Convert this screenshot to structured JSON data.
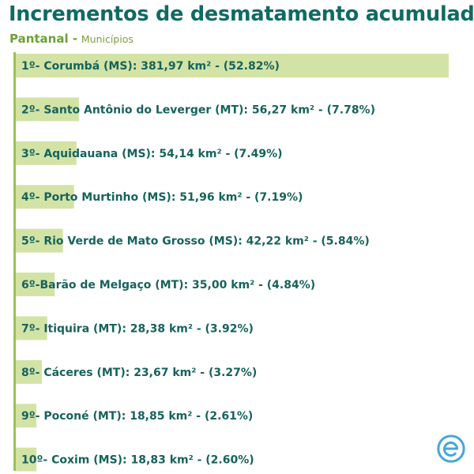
{
  "header": {
    "title": "Incrementos de desmatamento acumulado",
    "region": "Pantanal -",
    "kind": "Municípios"
  },
  "colors": {
    "title": "#0e6b63",
    "bar": "#d3e3a6",
    "axis": "#9ec24b",
    "label": "#16635c",
    "logo": "#4aa6d6"
  },
  "logo": {
    "icon": "circular-e-logo-icon"
  },
  "chart_data": {
    "type": "bar",
    "orientation": "horizontal",
    "unit": "km²",
    "categories": [
      "Corumbá (MS)",
      "Santo Antônio do Leverger (MT)",
      "Aquidauana (MS)",
      "Porto Murtinho (MS)",
      "Rio Verde de Mato Grosso (MS)",
      "Barão de Melgaço (MT)",
      "Itiquira (MT)",
      "Cáceres (MT)",
      "Poconé (MT)",
      "Coxim (MS)"
    ],
    "values": [
      381.97,
      56.27,
      54.14,
      51.96,
      42.22,
      35.0,
      28.38,
      23.67,
      18.85,
      18.83
    ],
    "percentages": [
      52.82,
      7.78,
      7.49,
      7.19,
      5.84,
      4.84,
      3.92,
      3.27,
      2.61,
      2.6
    ],
    "labels": [
      "1º- Corumbá (MS): 381,97 km² - (52.82%)",
      "2º- Santo Antônio do Leverger (MT): 56,27 km² - (7.78%)",
      "3º- Aquidauana (MS): 54,14 km² - (7.49%)",
      "4º- Porto Murtinho (MS): 51,96 km² - (7.19%)",
      "5º- Rio Verde de Mato Grosso (MS): 42,22 km² - (5.84%)",
      "6º-Barão de Melgaço (MT): 35,00 km² - (4.84%)",
      "7º- Itiquira (MT): 28,38 km² - (3.92%)",
      "8º- Cáceres (MT): 23,67 km² - (3.27%)",
      "9º- Poconé (MT): 18,85 km² - (2.61%)",
      "10º- Coxim (MS): 18,83 km² - (2.60%)"
    ],
    "xlim": [
      0,
      381.97
    ],
    "grid": false,
    "legend": "none"
  }
}
